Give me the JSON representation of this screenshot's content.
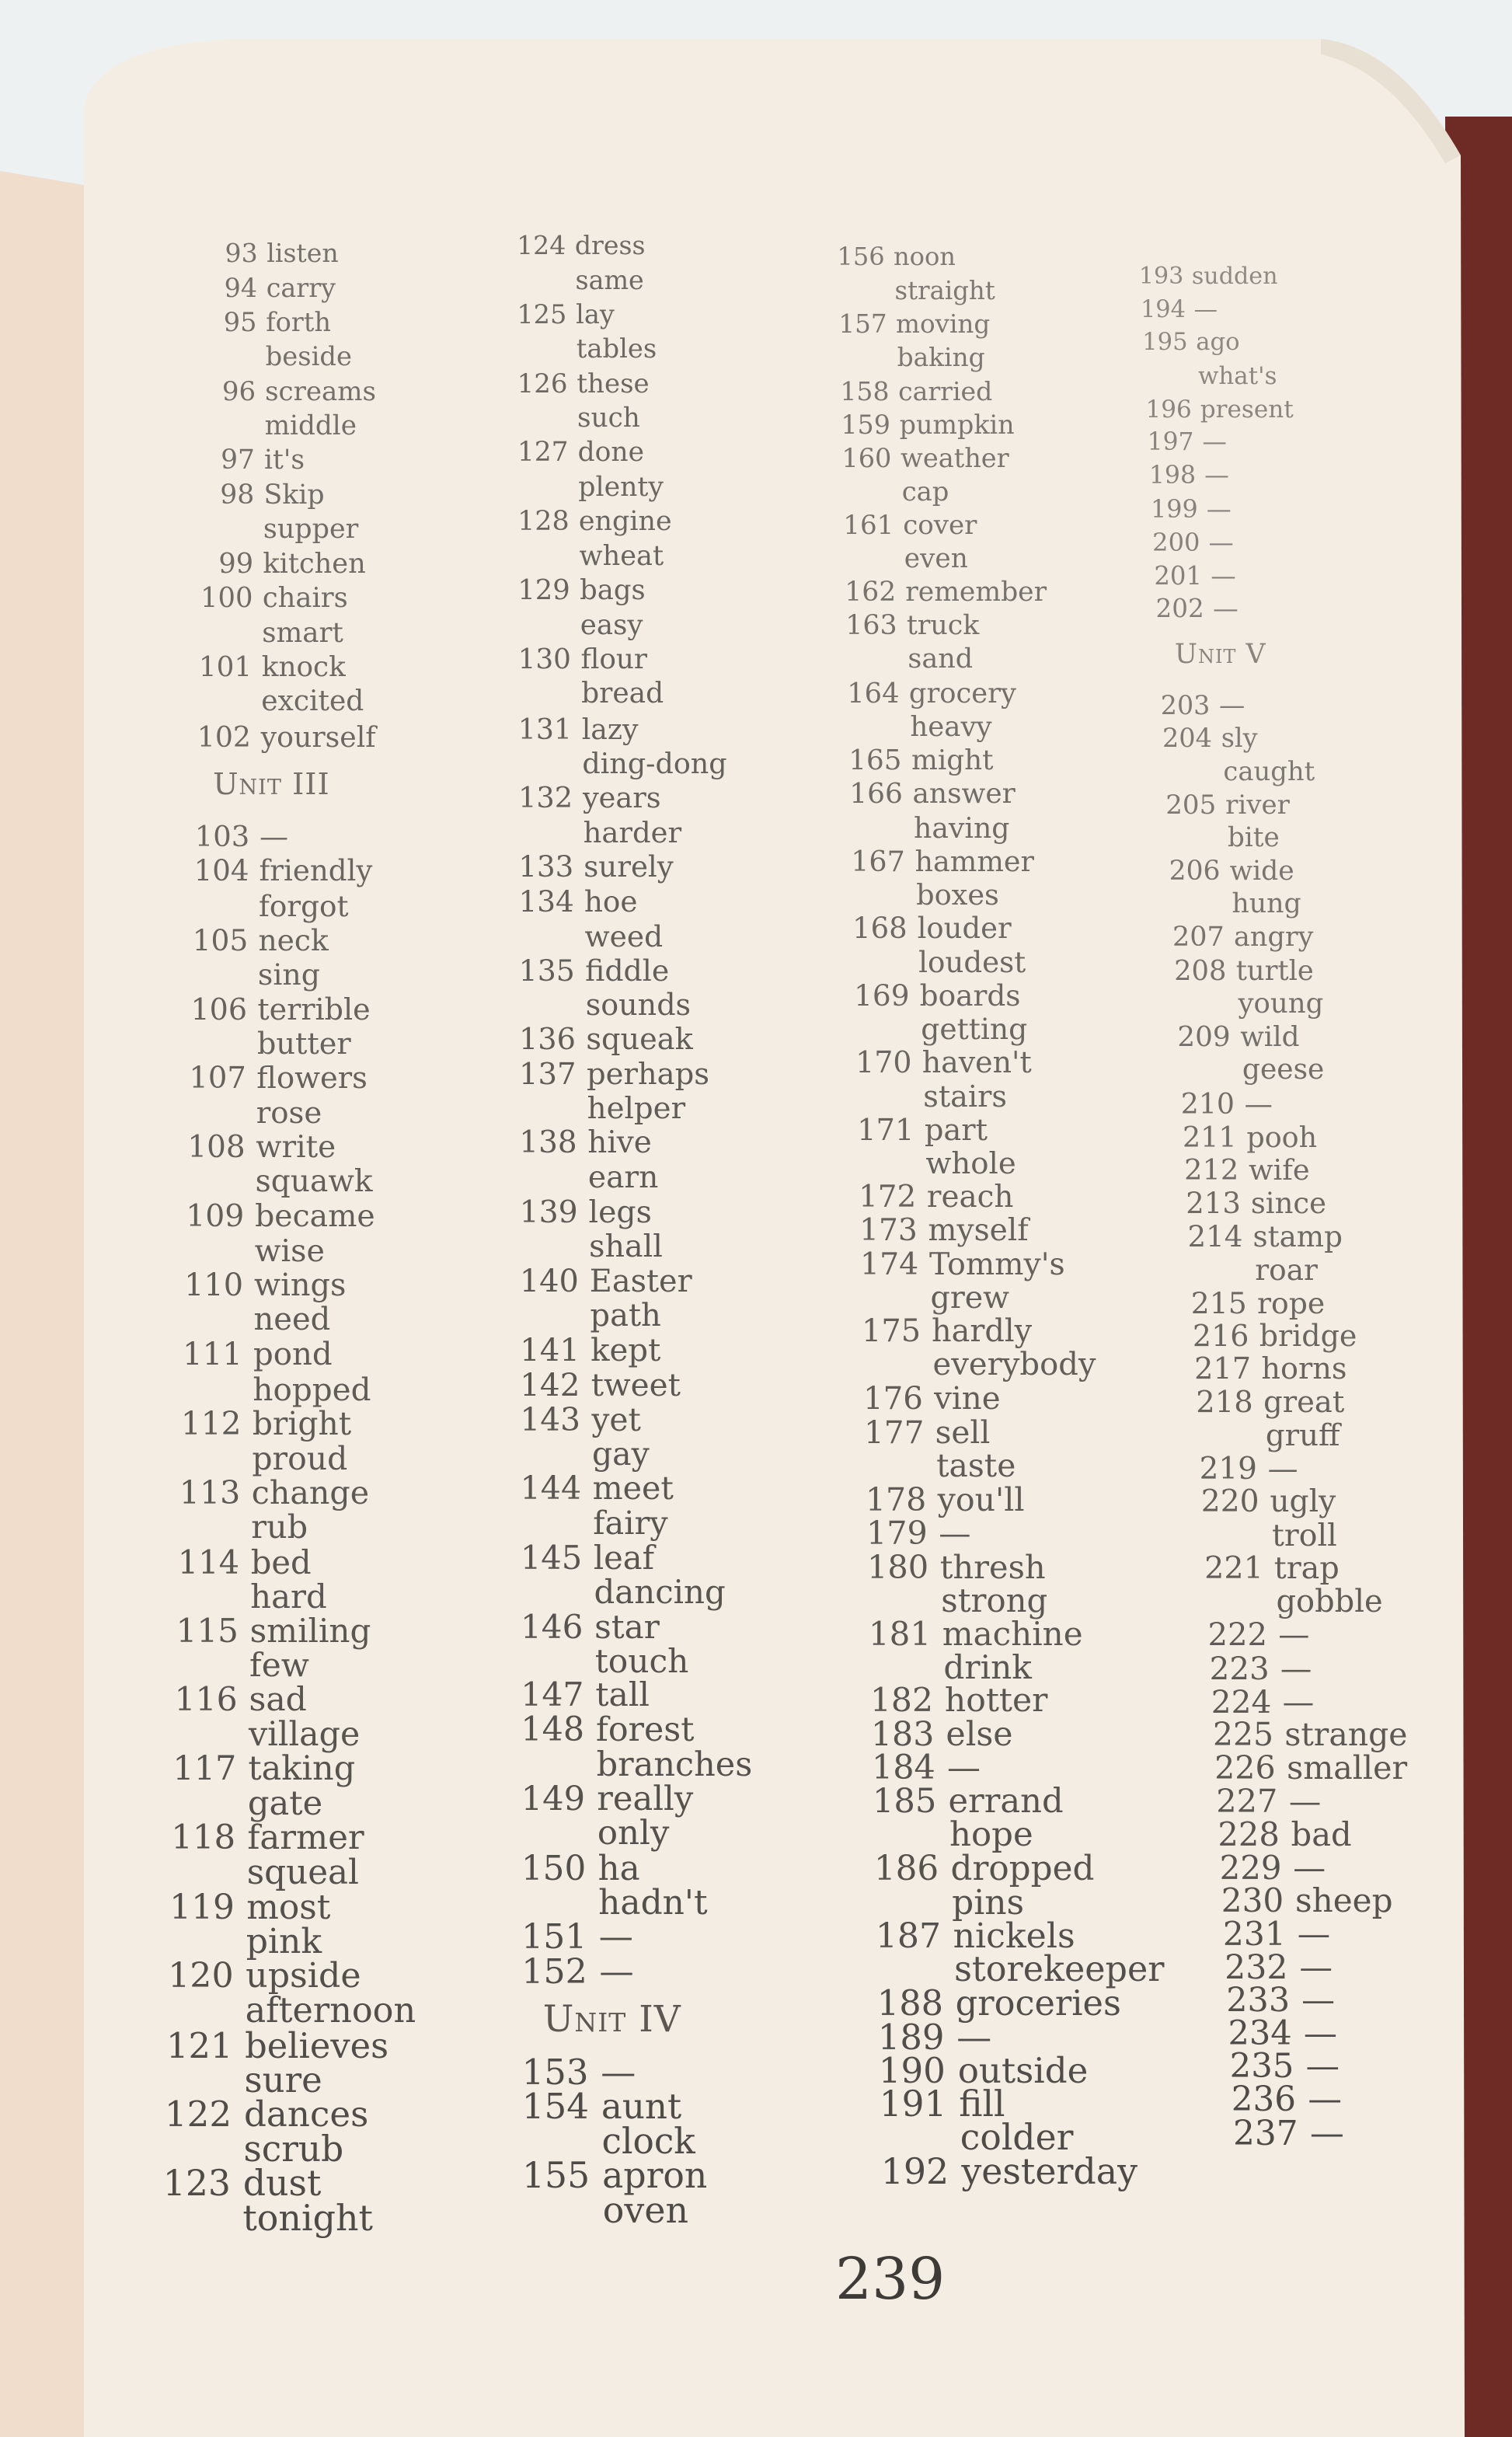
{
  "page_number": "239",
  "columns": [
    [
      {
        "n": "93",
        "w": "listen"
      },
      {
        "n": "94",
        "w": "carry"
      },
      {
        "n": "95",
        "w": "forth"
      },
      {
        "n": "",
        "w": "beside"
      },
      {
        "n": "96",
        "w": "screams"
      },
      {
        "n": "",
        "w": "middle"
      },
      {
        "n": "97",
        "w": "it's"
      },
      {
        "n": "98",
        "w": "Skip"
      },
      {
        "n": "",
        "w": "supper"
      },
      {
        "n": "99",
        "w": "kitchen"
      },
      {
        "n": "100",
        "w": "chairs"
      },
      {
        "n": "",
        "w": "smart"
      },
      {
        "n": "101",
        "w": "knock"
      },
      {
        "n": "",
        "w": "excited"
      },
      {
        "n": "102",
        "w": "yourself"
      },
      {
        "unit": "Unit III"
      },
      {
        "n": "103",
        "w": "—"
      },
      {
        "n": "104",
        "w": "friendly"
      },
      {
        "n": "",
        "w": "forgot"
      },
      {
        "n": "105",
        "w": "neck"
      },
      {
        "n": "",
        "w": "sing"
      },
      {
        "n": "106",
        "w": "terrible"
      },
      {
        "n": "",
        "w": "butter"
      },
      {
        "n": "107",
        "w": "flowers"
      },
      {
        "n": "",
        "w": "rose"
      },
      {
        "n": "108",
        "w": "write"
      },
      {
        "n": "",
        "w": "squawk"
      },
      {
        "n": "109",
        "w": "became"
      },
      {
        "n": "",
        "w": "wise"
      },
      {
        "n": "110",
        "w": "wings"
      },
      {
        "n": "",
        "w": "need"
      },
      {
        "n": "111",
        "w": "pond"
      },
      {
        "n": "",
        "w": "hopped"
      },
      {
        "n": "112",
        "w": "bright"
      },
      {
        "n": "",
        "w": "proud"
      },
      {
        "n": "113",
        "w": "change"
      },
      {
        "n": "",
        "w": "rub"
      },
      {
        "n": "114",
        "w": "bed"
      },
      {
        "n": "",
        "w": "hard"
      },
      {
        "n": "115",
        "w": "smiling"
      },
      {
        "n": "",
        "w": "few"
      },
      {
        "n": "116",
        "w": "sad"
      },
      {
        "n": "",
        "w": "village"
      },
      {
        "n": "117",
        "w": "taking"
      },
      {
        "n": "",
        "w": "gate"
      },
      {
        "n": "118",
        "w": "farmer"
      },
      {
        "n": "",
        "w": "squeal"
      },
      {
        "n": "119",
        "w": "most"
      },
      {
        "n": "",
        "w": "pink"
      },
      {
        "n": "120",
        "w": "upside"
      },
      {
        "n": "",
        "w": "afternoon"
      },
      {
        "n": "121",
        "w": "believes"
      },
      {
        "n": "",
        "w": "sure"
      },
      {
        "n": "122",
        "w": "dances"
      },
      {
        "n": "",
        "w": "scrub"
      },
      {
        "n": "123",
        "w": "dust"
      },
      {
        "n": "",
        "w": "tonight"
      }
    ],
    [
      {
        "n": "124",
        "w": "dress"
      },
      {
        "n": "",
        "w": "same"
      },
      {
        "n": "125",
        "w": "lay"
      },
      {
        "n": "",
        "w": "tables"
      },
      {
        "n": "126",
        "w": "these"
      },
      {
        "n": "",
        "w": "such"
      },
      {
        "n": "127",
        "w": "done"
      },
      {
        "n": "",
        "w": "plenty"
      },
      {
        "n": "128",
        "w": "engine"
      },
      {
        "n": "",
        "w": "wheat"
      },
      {
        "n": "129",
        "w": "bags"
      },
      {
        "n": "",
        "w": "easy"
      },
      {
        "n": "130",
        "w": "flour"
      },
      {
        "n": "",
        "w": "bread"
      },
      {
        "n": "131",
        "w": "lazy"
      },
      {
        "n": "",
        "w": "ding-dong"
      },
      {
        "n": "132",
        "w": "years"
      },
      {
        "n": "",
        "w": "harder"
      },
      {
        "n": "133",
        "w": "surely"
      },
      {
        "n": "134",
        "w": "hoe"
      },
      {
        "n": "",
        "w": "weed"
      },
      {
        "n": "135",
        "w": "fiddle"
      },
      {
        "n": "",
        "w": "sounds"
      },
      {
        "n": "136",
        "w": "squeak"
      },
      {
        "n": "137",
        "w": "perhaps"
      },
      {
        "n": "",
        "w": "helper"
      },
      {
        "n": "138",
        "w": "hive"
      },
      {
        "n": "",
        "w": "earn"
      },
      {
        "n": "139",
        "w": "legs"
      },
      {
        "n": "",
        "w": "shall"
      },
      {
        "n": "140",
        "w": "Easter"
      },
      {
        "n": "",
        "w": "path"
      },
      {
        "n": "141",
        "w": "kept"
      },
      {
        "n": "142",
        "w": "tweet"
      },
      {
        "n": "143",
        "w": "yet"
      },
      {
        "n": "",
        "w": "gay"
      },
      {
        "n": "144",
        "w": "meet"
      },
      {
        "n": "",
        "w": "fairy"
      },
      {
        "n": "145",
        "w": "leaf"
      },
      {
        "n": "",
        "w": "dancing"
      },
      {
        "n": "146",
        "w": "star"
      },
      {
        "n": "",
        "w": "touch"
      },
      {
        "n": "147",
        "w": "tall"
      },
      {
        "n": "148",
        "w": "forest"
      },
      {
        "n": "",
        "w": "branches"
      },
      {
        "n": "149",
        "w": "really"
      },
      {
        "n": "",
        "w": "only"
      },
      {
        "n": "150",
        "w": "ha"
      },
      {
        "n": "",
        "w": "hadn't"
      },
      {
        "n": "151",
        "w": "—"
      },
      {
        "n": "152",
        "w": "—"
      },
      {
        "unit": "Unit IV"
      },
      {
        "n": "153",
        "w": "—"
      },
      {
        "n": "154",
        "w": "aunt"
      },
      {
        "n": "",
        "w": "clock"
      },
      {
        "n": "155",
        "w": "apron"
      },
      {
        "n": "",
        "w": "oven"
      }
    ],
    [
      {
        "n": "156",
        "w": "noon"
      },
      {
        "n": "",
        "w": "straight"
      },
      {
        "n": "157",
        "w": "moving"
      },
      {
        "n": "",
        "w": "baking"
      },
      {
        "n": "158",
        "w": "carried"
      },
      {
        "n": "159",
        "w": "pumpkin"
      },
      {
        "n": "160",
        "w": "weather"
      },
      {
        "n": "",
        "w": "cap"
      },
      {
        "n": "161",
        "w": "cover"
      },
      {
        "n": "",
        "w": "even"
      },
      {
        "n": "162",
        "w": "remember"
      },
      {
        "n": "163",
        "w": "truck"
      },
      {
        "n": "",
        "w": "sand"
      },
      {
        "n": "164",
        "w": "grocery"
      },
      {
        "n": "",
        "w": "heavy"
      },
      {
        "n": "165",
        "w": "might"
      },
      {
        "n": "166",
        "w": "answer"
      },
      {
        "n": "",
        "w": "having"
      },
      {
        "n": "167",
        "w": "hammer"
      },
      {
        "n": "",
        "w": "boxes"
      },
      {
        "n": "168",
        "w": "louder"
      },
      {
        "n": "",
        "w": "loudest"
      },
      {
        "n": "169",
        "w": "boards"
      },
      {
        "n": "",
        "w": "getting"
      },
      {
        "n": "170",
        "w": "haven't"
      },
      {
        "n": "",
        "w": "stairs"
      },
      {
        "n": "171",
        "w": "part"
      },
      {
        "n": "",
        "w": "whole"
      },
      {
        "n": "172",
        "w": "reach"
      },
      {
        "n": "173",
        "w": "myself"
      },
      {
        "n": "174",
        "w": "Tommy's"
      },
      {
        "n": "",
        "w": "grew"
      },
      {
        "n": "175",
        "w": "hardly"
      },
      {
        "n": "",
        "w": "everybody"
      },
      {
        "n": "176",
        "w": "vine"
      },
      {
        "n": "177",
        "w": "sell"
      },
      {
        "n": "",
        "w": "taste"
      },
      {
        "n": "178",
        "w": "you'll"
      },
      {
        "n": "179",
        "w": "—"
      },
      {
        "n": "180",
        "w": "thresh"
      },
      {
        "n": "",
        "w": "strong"
      },
      {
        "n": "181",
        "w": "machine"
      },
      {
        "n": "",
        "w": "drink"
      },
      {
        "n": "182",
        "w": "hotter"
      },
      {
        "n": "183",
        "w": "else"
      },
      {
        "n": "184",
        "w": "—"
      },
      {
        "n": "185",
        "w": "errand"
      },
      {
        "n": "",
        "w": "hope"
      },
      {
        "n": "186",
        "w": "dropped"
      },
      {
        "n": "",
        "w": "pins"
      },
      {
        "n": "187",
        "w": "nickels"
      },
      {
        "n": "",
        "w": "storekeeper"
      },
      {
        "n": "188",
        "w": "groceries"
      },
      {
        "n": "189",
        "w": "—"
      },
      {
        "n": "190",
        "w": "outside"
      },
      {
        "n": "191",
        "w": "fill"
      },
      {
        "n": "",
        "w": "colder"
      },
      {
        "n": "192",
        "w": "yesterday"
      }
    ],
    [
      {
        "n": "193",
        "w": "sudden"
      },
      {
        "n": "194",
        "w": "—"
      },
      {
        "n": "195",
        "w": "ago"
      },
      {
        "n": "",
        "w": "what's"
      },
      {
        "n": "196",
        "w": "present"
      },
      {
        "n": "197",
        "w": "—"
      },
      {
        "n": "198",
        "w": "—"
      },
      {
        "n": "199",
        "w": "—"
      },
      {
        "n": "200",
        "w": "—"
      },
      {
        "n": "201",
        "w": "—"
      },
      {
        "n": "202",
        "w": "—"
      },
      {
        "unit": "Unit V"
      },
      {
        "n": "203",
        "w": "—"
      },
      {
        "n": "204",
        "w": "sly"
      },
      {
        "n": "",
        "w": "caught"
      },
      {
        "n": "205",
        "w": "river"
      },
      {
        "n": "",
        "w": "bite"
      },
      {
        "n": "206",
        "w": "wide"
      },
      {
        "n": "",
        "w": "hung"
      },
      {
        "n": "207",
        "w": "angry"
      },
      {
        "n": "208",
        "w": "turtle"
      },
      {
        "n": "",
        "w": "young"
      },
      {
        "n": "209",
        "w": "wild"
      },
      {
        "n": "",
        "w": "geese"
      },
      {
        "n": "210",
        "w": "—"
      },
      {
        "n": "211",
        "w": "pooh"
      },
      {
        "n": "212",
        "w": "wife"
      },
      {
        "n": "213",
        "w": "since"
      },
      {
        "n": "214",
        "w": "stamp"
      },
      {
        "n": "",
        "w": "roar"
      },
      {
        "n": "215",
        "w": "rope"
      },
      {
        "n": "216",
        "w": "bridge"
      },
      {
        "n": "217",
        "w": "horns"
      },
      {
        "n": "218",
        "w": "great"
      },
      {
        "n": "",
        "w": "gruff"
      },
      {
        "n": "219",
        "w": "—"
      },
      {
        "n": "220",
        "w": "ugly"
      },
      {
        "n": "",
        "w": "troll"
      },
      {
        "n": "221",
        "w": "trap"
      },
      {
        "n": "",
        "w": "gobble"
      },
      {
        "n": "222",
        "w": "—"
      },
      {
        "n": "223",
        "w": "—"
      },
      {
        "n": "224",
        "w": "—"
      },
      {
        "n": "225",
        "w": "strange"
      },
      {
        "n": "226",
        "w": "smaller"
      },
      {
        "n": "227",
        "w": "—"
      },
      {
        "n": "228",
        "w": "bad"
      },
      {
        "n": "229",
        "w": "—"
      },
      {
        "n": "230",
        "w": "sheep"
      },
      {
        "n": "231",
        "w": "—"
      },
      {
        "n": "232",
        "w": "—"
      },
      {
        "n": "233",
        "w": "—"
      },
      {
        "n": "234",
        "w": "—"
      },
      {
        "n": "235",
        "w": "—"
      },
      {
        "n": "236",
        "w": "—"
      },
      {
        "n": "237",
        "w": "—"
      }
    ]
  ]
}
